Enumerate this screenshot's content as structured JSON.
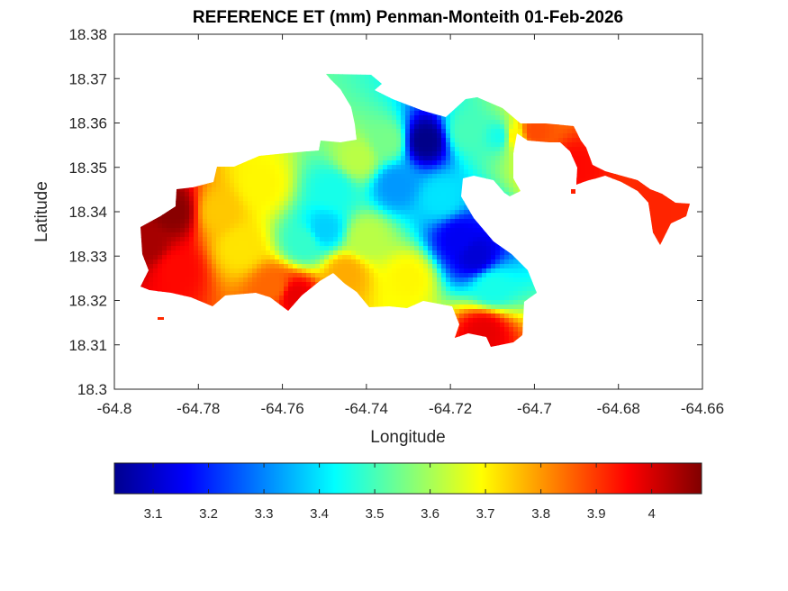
{
  "chart_data": {
    "type": "heatmap",
    "title": "REFERENCE ET (mm) Penman-Monteith 01-Feb-2026",
    "xlabel": "Longitude",
    "ylabel": "Latitude",
    "xlim": [
      -64.8,
      -64.66
    ],
    "ylim": [
      18.3,
      18.38
    ],
    "xticks": [
      "-64.8",
      "-64.78",
      "-64.76",
      "-64.74",
      "-64.72",
      "-64.7",
      "-64.68",
      "-64.66"
    ],
    "yticks": [
      "18.3",
      "18.31",
      "18.32",
      "18.33",
      "18.34",
      "18.35",
      "18.36",
      "18.37",
      "18.38"
    ],
    "grid": false,
    "colormap": "jet",
    "colorbar": {
      "placement": "bottom",
      "range": [
        3.03,
        4.09
      ],
      "ticks": [
        "3.1",
        "3.2",
        "3.3",
        "3.4",
        "3.5",
        "3.6",
        "3.7",
        "3.8",
        "3.9",
        "4"
      ]
    },
    "field_samples": [
      {
        "lon": -64.792,
        "lat": 18.333,
        "value": 4.05
      },
      {
        "lon": -64.786,
        "lat": 18.34,
        "value": 4.08
      },
      {
        "lon": -64.785,
        "lat": 18.327,
        "value": 3.95
      },
      {
        "lon": -64.775,
        "lat": 18.34,
        "value": 3.75
      },
      {
        "lon": -64.77,
        "lat": 18.332,
        "value": 3.72
      },
      {
        "lon": -64.765,
        "lat": 18.346,
        "value": 3.7
      },
      {
        "lon": -64.762,
        "lat": 18.323,
        "value": 3.85
      },
      {
        "lon": -64.757,
        "lat": 18.321,
        "value": 3.98
      },
      {
        "lon": -64.755,
        "lat": 18.333,
        "value": 3.48
      },
      {
        "lon": -64.75,
        "lat": 18.336,
        "value": 3.38
      },
      {
        "lon": -64.748,
        "lat": 18.345,
        "value": 3.45
      },
      {
        "lon": -64.745,
        "lat": 18.326,
        "value": 3.78
      },
      {
        "lon": -64.742,
        "lat": 18.352,
        "value": 3.62
      },
      {
        "lon": -64.74,
        "lat": 18.334,
        "value": 3.62
      },
      {
        "lon": -64.735,
        "lat": 18.356,
        "value": 3.55
      },
      {
        "lon": -64.733,
        "lat": 18.346,
        "value": 3.32
      },
      {
        "lon": -64.73,
        "lat": 18.325,
        "value": 3.7
      },
      {
        "lon": -64.726,
        "lat": 18.356,
        "value": 3.04
      },
      {
        "lon": -64.722,
        "lat": 18.343,
        "value": 3.4
      },
      {
        "lon": -64.718,
        "lat": 18.334,
        "value": 3.15
      },
      {
        "lon": -64.714,
        "lat": 18.33,
        "value": 3.12
      },
      {
        "lon": -64.716,
        "lat": 18.358,
        "value": 3.5
      },
      {
        "lon": -64.71,
        "lat": 18.323,
        "value": 3.45
      },
      {
        "lon": -64.712,
        "lat": 18.313,
        "value": 3.98
      },
      {
        "lon": -64.708,
        "lat": 18.357,
        "value": 3.45
      },
      {
        "lon": -64.705,
        "lat": 18.357,
        "value": 3.7
      },
      {
        "lon": -64.7,
        "lat": 18.358,
        "value": 3.88
      },
      {
        "lon": -64.691,
        "lat": 18.35,
        "value": 3.95
      },
      {
        "lon": -64.672,
        "lat": 18.34,
        "value": 3.92
      }
    ]
  }
}
